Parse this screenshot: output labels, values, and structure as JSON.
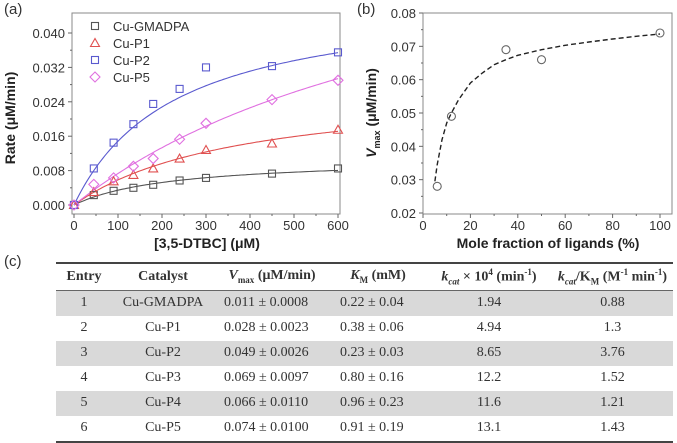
{
  "panels": {
    "a": "(a)",
    "b": "(b)",
    "c": "(c)"
  },
  "chart_data": [
    {
      "type": "scatter",
      "panel": "(a)",
      "title": "",
      "xlabel": "[3,5-DTBC] (μM)",
      "ylabel": "Rate (μM/min)",
      "xlim": [
        0,
        600
      ],
      "ylim": [
        0,
        0.04
      ],
      "xticks": [
        "0",
        "100",
        "200",
        "300",
        "400",
        "500",
        "600"
      ],
      "yticks": [
        "0.000",
        "0.008",
        "0.016",
        "0.024",
        "0.032",
        "0.040"
      ],
      "legend": "top-left",
      "fit_lines": "Michaelis-Menten fits (solid)",
      "series": [
        {
          "name": "Cu-GMADPA",
          "marker": "square",
          "color": "#555555",
          "x": [
            0,
            45,
            90,
            135,
            180,
            240,
            300,
            450,
            600
          ],
          "y": [
            0.0,
            0.0023,
            0.0033,
            0.004,
            0.0047,
            0.0057,
            0.0063,
            0.0073,
            0.0085
          ],
          "fit": {
            "vmax": 0.011,
            "km": 220
          }
        },
        {
          "name": "Cu-P1",
          "marker": "triangle",
          "color": "#e05050",
          "x": [
            0,
            45,
            90,
            135,
            180,
            240,
            300,
            450,
            600
          ],
          "y": [
            0.0,
            0.003,
            0.0055,
            0.007,
            0.0085,
            0.0108,
            0.0128,
            0.0143,
            0.0175
          ],
          "fit": {
            "vmax": 0.028,
            "km": 380
          }
        },
        {
          "name": "Cu-P2",
          "marker": "square",
          "color": "#5a5acf",
          "x": [
            0,
            45,
            90,
            135,
            180,
            240,
            300,
            450,
            600
          ],
          "y": [
            0.0,
            0.0085,
            0.0145,
            0.0188,
            0.0235,
            0.027,
            0.032,
            0.0323,
            0.0355
          ],
          "fit": {
            "vmax": 0.049,
            "km": 230
          }
        },
        {
          "name": "Cu-P5",
          "marker": "diamond",
          "color": "#e070e0",
          "x": [
            0,
            45,
            90,
            135,
            180,
            240,
            300,
            450,
            600
          ],
          "y": [
            0.0,
            0.0048,
            0.0063,
            0.009,
            0.0108,
            0.0153,
            0.019,
            0.0245,
            0.029
          ],
          "fit": {
            "vmax": 0.074,
            "km": 910
          }
        }
      ]
    },
    {
      "type": "scatter",
      "panel": "(b)",
      "title": "",
      "xlabel": "Mole fraction of ligands (%)",
      "ylabel": "V_max (μM/min)",
      "ylabel_main": "V",
      "ylabel_sub": "max",
      "ylabel_rest": " (μM/min)",
      "xlim": [
        0,
        100
      ],
      "ylim": [
        0.02,
        0.08
      ],
      "xticks": [
        "0",
        "20",
        "40",
        "60",
        "80",
        "100"
      ],
      "yticks": [
        "0.02",
        "0.03",
        "0.04",
        "0.05",
        "0.06",
        "0.07",
        "0.08"
      ],
      "marker": "circle-open",
      "fit_line": "dashed",
      "x": [
        6,
        12,
        35,
        50,
        100
      ],
      "y": [
        0.028,
        0.049,
        0.069,
        0.066,
        0.074
      ],
      "curve": {
        "x": [
          5,
          6,
          8,
          10,
          12,
          15,
          20,
          25,
          30,
          35,
          40,
          50,
          60,
          70,
          80,
          90,
          100
        ],
        "y": [
          0.0295,
          0.0345,
          0.042,
          0.047,
          0.05,
          0.054,
          0.059,
          0.062,
          0.0645,
          0.066,
          0.0673,
          0.069,
          0.0703,
          0.0713,
          0.0722,
          0.073,
          0.0737
        ]
      }
    }
  ],
  "table": {
    "headers": {
      "entry": "Entry",
      "catalyst": "Catalyst",
      "vmax_main": "V",
      "vmax_sub": "max",
      "vmax_unit": " (μM/min)",
      "km_main": "K",
      "km_sub": "M",
      "km_unit": " (mM)",
      "kcat_main": "k",
      "kcat_sub": "cat",
      "kcat_mid": " × 10",
      "kcat_sup": "4",
      "kcat_unit": " (min",
      "kcat_unit_sup": "-1",
      "kcat_unit_end": ")",
      "eff_main": "k",
      "eff_sub": "cat",
      "eff_mid": "/K",
      "eff_sub2": "M",
      "eff_unit": " (M",
      "eff_unit_sup": "-1",
      "eff_unit_mid": " min",
      "eff_unit_sup2": "-1",
      "eff_unit_end": ")"
    },
    "rows": [
      {
        "entry": "1",
        "catalyst": "Cu-GMADPA",
        "vmax": "0.011 ± 0.0008",
        "km": "0.22 ± 0.04",
        "kcat": "1.94",
        "eff": "0.88"
      },
      {
        "entry": "2",
        "catalyst": "Cu-P1",
        "vmax": "0.028 ± 0.0023",
        "km": "0.38 ± 0.06",
        "kcat": "4.94",
        "eff": "1.3"
      },
      {
        "entry": "3",
        "catalyst": "Cu-P2",
        "vmax": "0.049 ± 0.0026",
        "km": "0.23 ± 0.03",
        "kcat": "8.65",
        "eff": "3.76"
      },
      {
        "entry": "4",
        "catalyst": "Cu-P3",
        "vmax": "0.069 ± 0.0097",
        "km": "0.80 ± 0.16",
        "kcat": "12.2",
        "eff": "1.52"
      },
      {
        "entry": "5",
        "catalyst": "Cu-P4",
        "vmax": "0.066 ± 0.0110",
        "km": "0.96 ± 0.23",
        "kcat": "11.6",
        "eff": "1.21"
      },
      {
        "entry": "6",
        "catalyst": "Cu-P5",
        "vmax": "0.074 ± 0.0100",
        "km": "0.91 ± 0.19",
        "kcat": "13.1",
        "eff": "1.43"
      }
    ]
  }
}
